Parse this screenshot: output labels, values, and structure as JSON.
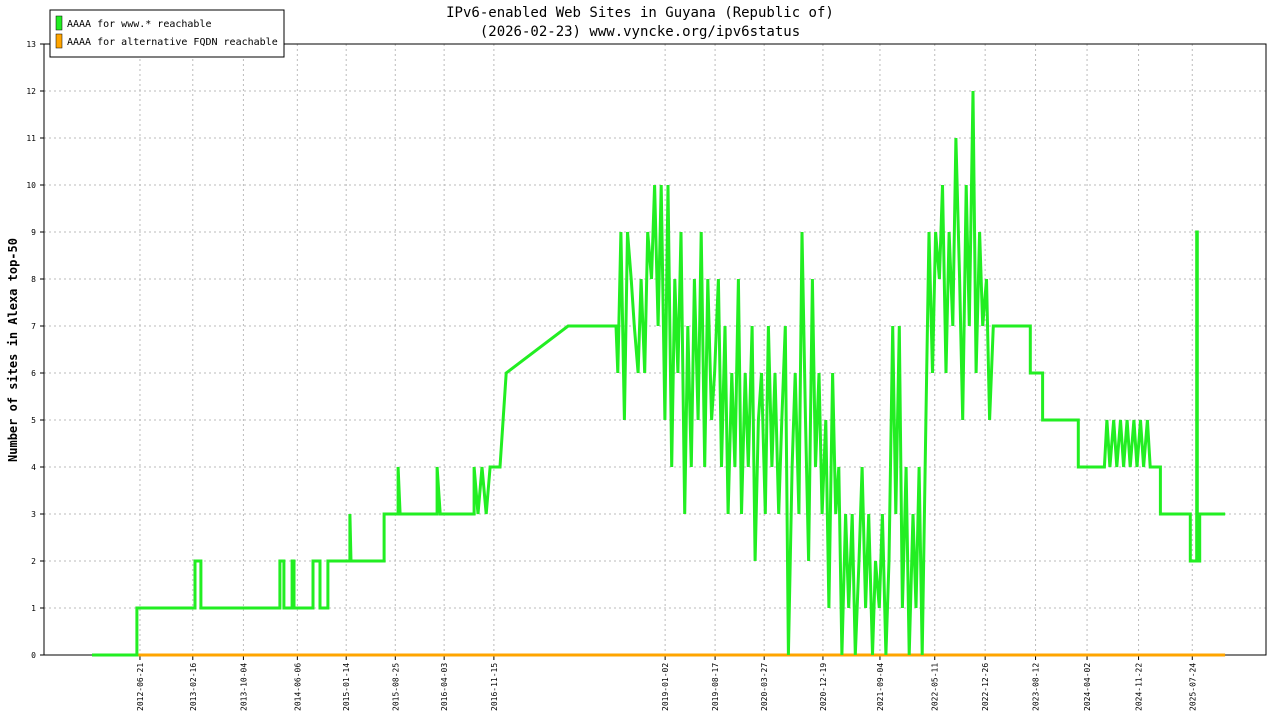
{
  "chart_data": {
    "type": "line",
    "title": "IPv6-enabled Web Sites in Guyana (Republic of)",
    "subtitle": "(2026-02-23) www.vyncke.org/ipv6status",
    "y_label": "Number of sites in Alexa top-50",
    "xlim": [
      "2011-04-12",
      "2026-06-24"
    ],
    "xticks": [
      "2012-06-21",
      "2013-02-16",
      "2013-10-04",
      "2014-06-06",
      "2015-01-14",
      "2015-08-25",
      "2016-04-03",
      "2016-11-15",
      "2019-01-02",
      "2019-08-17",
      "2020-03-27",
      "2020-12-19",
      "2021-09-04",
      "2022-05-11",
      "2022-12-26",
      "2023-08-12",
      "2024-04-02",
      "2024-11-22",
      "2025-07-24"
    ],
    "ylim": [
      0,
      13
    ],
    "yticks": [
      0,
      1,
      2,
      3,
      4,
      5,
      6,
      7,
      8,
      9,
      10,
      11,
      12,
      13
    ],
    "grid": true,
    "legend": "top-left",
    "series": [
      {
        "name": "AAAA for www.* reachable",
        "color": "#22ee22",
        "x": [
          "2011-11-16",
          "2012-06-07",
          "2012-06-07",
          "2013-02-26",
          "2013-02-26",
          "2013-03-25",
          "2013-03-25",
          "2014-03-19",
          "2014-03-19",
          "2014-04-06",
          "2014-04-06",
          "2014-05-13",
          "2014-05-13",
          "2014-05-22",
          "2014-05-22",
          "2014-08-16",
          "2014-08-16",
          "2014-09-17",
          "2014-09-17",
          "2014-10-23",
          "2014-10-23",
          "2015-01-31",
          "2015-01-31",
          "2015-02-05",
          "2015-07-05",
          "2015-07-05",
          "2015-09-07",
          "2015-09-07",
          "2015-09-16",
          "2016-03-02",
          "2016-03-02",
          "2016-03-16",
          "2016-08-17",
          "2016-08-17",
          "2016-09-04",
          "2016-09-22",
          "2016-10-11",
          "2016-10-29",
          "2016-12-13",
          "2017-01-10",
          "2017-10-18",
          "2018-05-24",
          "2018-06-01",
          "2018-06-15",
          "2018-07-01",
          "2018-07-15",
          "2018-08-01",
          "2018-08-15",
          "2018-09-01",
          "2018-09-15",
          "2018-10-01",
          "2018-10-15",
          "2018-11-01",
          "2018-11-15",
          "2018-12-01",
          "2018-12-15",
          "2019-01-01",
          "2019-01-15",
          "2019-02-01",
          "2019-02-15",
          "2019-03-01",
          "2019-03-15",
          "2019-04-01",
          "2019-04-15",
          "2019-05-01",
          "2019-05-15",
          "2019-06-01",
          "2019-06-15",
          "2019-07-01",
          "2019-07-15",
          "2019-08-01",
          "2019-08-15",
          "2019-09-01",
          "2019-09-15",
          "2019-10-01",
          "2019-10-15",
          "2019-11-01",
          "2019-11-15",
          "2019-12-01",
          "2019-12-15",
          "2020-01-01",
          "2020-01-15",
          "2020-02-01",
          "2020-02-15",
          "2020-03-01",
          "2020-03-15",
          "2020-04-01",
          "2020-04-15",
          "2020-05-01",
          "2020-05-15",
          "2020-06-01",
          "2020-06-15",
          "2020-07-01",
          "2020-07-15",
          "2020-08-01",
          "2020-08-15",
          "2020-09-01",
          "2020-09-15",
          "2020-10-01",
          "2020-10-15",
          "2020-11-01",
          "2020-11-15",
          "2020-12-01",
          "2020-12-15",
          "2021-01-01",
          "2021-01-15",
          "2021-02-01",
          "2021-02-15",
          "2021-03-01",
          "2021-03-15",
          "2021-04-01",
          "2021-04-15",
          "2021-05-01",
          "2021-05-15",
          "2021-06-01",
          "2021-06-15",
          "2021-07-01",
          "2021-07-15",
          "2021-08-01",
          "2021-08-15",
          "2021-09-01",
          "2021-09-15",
          "2021-10-01",
          "2021-10-15",
          "2021-11-01",
          "2021-11-15",
          "2021-12-01",
          "2021-12-15",
          "2022-01-01",
          "2022-01-15",
          "2022-02-01",
          "2022-02-15",
          "2022-03-01",
          "2022-03-15",
          "2022-04-01",
          "2022-04-15",
          "2022-05-01",
          "2022-05-15",
          "2022-06-01",
          "2022-06-15",
          "2022-07-01",
          "2022-07-15",
          "2022-08-01",
          "2022-08-15",
          "2022-09-01",
          "2022-09-15",
          "2022-10-01",
          "2022-10-15",
          "2022-11-01",
          "2022-11-15",
          "2022-12-01",
          "2022-12-15",
          "2023-01-01",
          "2023-01-15",
          "2023-02-01",
          "2023-07-19",
          "2023-07-19",
          "2023-09-13",
          "2023-09-13",
          "2024-02-22",
          "2024-02-22",
          "2024-06-20",
          "2024-07-01",
          "2024-07-15",
          "2024-08-01",
          "2024-08-15",
          "2024-09-01",
          "2024-09-15",
          "2024-10-01",
          "2024-10-15",
          "2024-11-01",
          "2024-11-15",
          "2024-12-01",
          "2024-12-15",
          "2025-01-01",
          "2025-01-14",
          "2025-03-01",
          "2025-03-01",
          "2025-07-15",
          "2025-07-15",
          "2025-08-13",
          "2025-08-13",
          "2025-08-16",
          "2025-08-16",
          "2025-08-27",
          "2025-08-27",
          "2025-12-20"
        ],
        "values": [
          0,
          0,
          1,
          1,
          2,
          2,
          1,
          1,
          2,
          2,
          1,
          1,
          2,
          2,
          1,
          1,
          2,
          2,
          1,
          1,
          2,
          2,
          3,
          2,
          2,
          3,
          3,
          4,
          3,
          3,
          4,
          3,
          3,
          4,
          3,
          4,
          3,
          4,
          4,
          6,
          7,
          7,
          6,
          9,
          5,
          9,
          8,
          7,
          6,
          8,
          6,
          9,
          8,
          10,
          7,
          10,
          5,
          10,
          4,
          8,
          6,
          9,
          3,
          7,
          4,
          8,
          5,
          9,
          4,
          8,
          5,
          6,
          8,
          4,
          7,
          3,
          6,
          4,
          8,
          3,
          6,
          4,
          7,
          2,
          5,
          6,
          3,
          7,
          4,
          6,
          3,
          5,
          7,
          0,
          4,
          6,
          3,
          9,
          5,
          2,
          8,
          4,
          6,
          3,
          5,
          1,
          6,
          3,
          4,
          0,
          3,
          1,
          3,
          0,
          2,
          4,
          1,
          3,
          0,
          2,
          1,
          3,
          0,
          2,
          7,
          3,
          7,
          1,
          4,
          0,
          3,
          1,
          4,
          0,
          5,
          9,
          6,
          9,
          8,
          10,
          6,
          9,
          7,
          11,
          8,
          5,
          10,
          7,
          12,
          6,
          9,
          7,
          8,
          5,
          7,
          7,
          6,
          6,
          5,
          5,
          4,
          4,
          5,
          4,
          5,
          4,
          5,
          4,
          5,
          4,
          5,
          4,
          5,
          4,
          5,
          4,
          4,
          3,
          3,
          2,
          2,
          9,
          9,
          2,
          2,
          3,
          3
        ]
      },
      {
        "name": "AAAA for alternative FQDN reachable",
        "color": "#ffa500",
        "x": [
          "2011-11-16",
          "2025-12-20"
        ],
        "values": [
          0,
          0
        ]
      }
    ]
  }
}
